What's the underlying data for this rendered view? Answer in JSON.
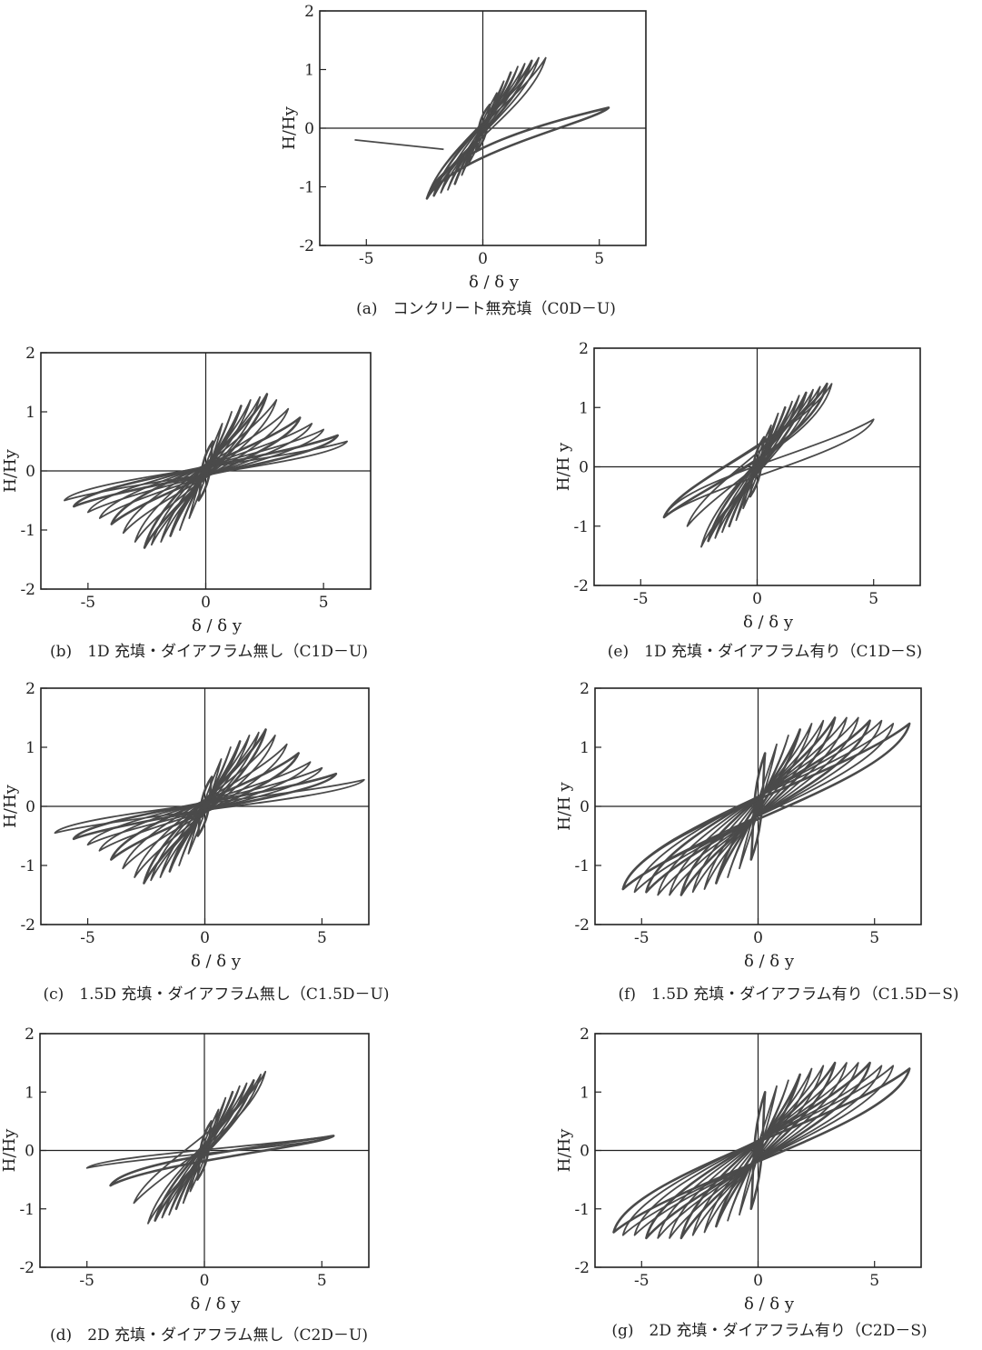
{
  "chart_data": [
    {
      "id": "a",
      "type": "line",
      "title": "",
      "caption": "(a)　コンクリート無充填（C0D－U)",
      "xlabel": "δ / δ y",
      "ylabel": "H/Hy",
      "xlim": [
        -7,
        7
      ],
      "ylim": [
        -2,
        2
      ],
      "xticks": [
        "-5",
        "0",
        "5"
      ],
      "yticks": [
        "-2",
        "-1",
        "0",
        "1",
        "2"
      ],
      "grid": false,
      "hysteresis": {
        "x": [
          -0.3,
          -0.6,
          -0.9,
          -1.2,
          -1.5,
          -1.8,
          -2.1,
          -2.4,
          0.3,
          0.6,
          0.9,
          1.2,
          1.5,
          1.8,
          2.1,
          2.4,
          2.7,
          5.4
        ],
        "y": [
          -0.4,
          -0.6,
          -0.8,
          -0.95,
          -1.05,
          -1.1,
          -1.15,
          -1.2,
          0.4,
          0.6,
          0.8,
          0.95,
          1.05,
          1.1,
          1.15,
          1.2,
          1.2,
          0.35
        ],
        "x_min": -5.5,
        "y_at_x_min": -0.2
      }
    },
    {
      "id": "b",
      "type": "line",
      "title": "",
      "caption": "(b)　1D 充填・ダイアフラム無し（C1D－U)",
      "xlabel": "δ / δ y",
      "ylabel": "H/Hy",
      "xlim": [
        -7,
        7
      ],
      "ylim": [
        -2,
        2
      ],
      "xticks": [
        "-5",
        "0",
        "5"
      ],
      "yticks": [
        "-2",
        "-1",
        "0",
        "1",
        "2"
      ],
      "grid": false,
      "hysteresis": {
        "x": [
          -0.3,
          -0.7,
          -1.1,
          -1.5,
          -1.9,
          -2.3,
          -2.6,
          -3.0,
          -3.5,
          -4.0,
          -4.5,
          -5.0,
          -5.6,
          -6.0,
          0.3,
          0.7,
          1.1,
          1.5,
          1.9,
          2.3,
          2.6,
          3.0,
          3.5,
          4.0,
          4.5,
          5.0,
          5.6,
          6.0
        ],
        "y": [
          -0.5,
          -0.8,
          -1.0,
          -1.1,
          -1.2,
          -1.25,
          -1.3,
          -1.2,
          -1.05,
          -0.9,
          -0.8,
          -0.7,
          -0.6,
          -0.5,
          0.5,
          0.8,
          1.0,
          1.1,
          1.2,
          1.25,
          1.3,
          1.2,
          1.05,
          0.9,
          0.8,
          0.7,
          0.6,
          0.5
        ]
      }
    },
    {
      "id": "e",
      "type": "line",
      "title": "",
      "caption": "(e)　1D 充填・ダイアフラム有り（C1D－S)",
      "xlabel": "δ / δ y",
      "ylabel": "H/H y",
      "xlim": [
        -7,
        7
      ],
      "ylim": [
        -2,
        2
      ],
      "xticks": [
        "-5",
        "0",
        "5"
      ],
      "yticks": [
        "-2",
        "-1",
        "0",
        "1",
        "2"
      ],
      "grid": false,
      "hysteresis": {
        "x": [
          -0.3,
          -0.6,
          -0.9,
          -1.2,
          -1.5,
          -1.8,
          -2.1,
          -2.4,
          -3.0,
          -4.0,
          0.3,
          0.6,
          0.9,
          1.2,
          1.5,
          1.8,
          2.1,
          2.4,
          2.7,
          3.0,
          3.2,
          5.0
        ],
        "y": [
          -0.5,
          -0.7,
          -0.9,
          -1.0,
          -1.1,
          -1.2,
          -1.25,
          -1.35,
          -1.0,
          -0.85,
          0.5,
          0.7,
          0.9,
          1.0,
          1.1,
          1.2,
          1.25,
          1.3,
          1.35,
          1.4,
          1.4,
          0.8
        ]
      }
    },
    {
      "id": "c",
      "type": "line",
      "title": "",
      "caption": "(c)　1.5D 充填・ダイアフラム無し（C1.5D－U)",
      "xlabel": "δ / δ y",
      "ylabel": "H/Hy",
      "xlim": [
        -7,
        7
      ],
      "ylim": [
        -2,
        2
      ],
      "xticks": [
        "-5",
        "0",
        "5"
      ],
      "yticks": [
        "-2",
        "-1",
        "0",
        "1",
        "2"
      ],
      "grid": false,
      "hysteresis": {
        "x": [
          -0.3,
          -0.7,
          -1.1,
          -1.5,
          -1.9,
          -2.3,
          -2.6,
          -3.0,
          -3.5,
          -4.0,
          -4.5,
          -5.0,
          -5.6,
          -6.4,
          0.3,
          0.7,
          1.1,
          1.5,
          1.9,
          2.3,
          2.6,
          3.0,
          3.5,
          4.0,
          4.5,
          5.0,
          5.6,
          6.8
        ],
        "y": [
          -0.5,
          -0.8,
          -1.0,
          -1.1,
          -1.2,
          -1.25,
          -1.3,
          -1.2,
          -1.05,
          -0.9,
          -0.75,
          -0.65,
          -0.55,
          -0.45,
          0.5,
          0.8,
          1.0,
          1.1,
          1.2,
          1.25,
          1.3,
          1.2,
          1.05,
          0.9,
          0.75,
          0.65,
          0.55,
          0.45
        ]
      }
    },
    {
      "id": "f",
      "type": "line",
      "title": "",
      "caption": "(f)　1.5D 充填・ダイアフラム有り（C1.5D－S)",
      "xlabel": "δ / δ y",
      "ylabel": "H/H y",
      "xlim": [
        -7,
        7
      ],
      "ylim": [
        -2,
        2
      ],
      "xticks": [
        "-5",
        "0",
        "5"
      ],
      "yticks": [
        "-2",
        "-1",
        "0",
        "1",
        "2"
      ],
      "grid": false,
      "hysteresis": {
        "x": [
          -0.3,
          -0.8,
          -1.3,
          -1.8,
          -2.3,
          -2.8,
          -3.3,
          -3.8,
          -4.3,
          -4.8,
          -5.3,
          -5.8,
          0.3,
          0.8,
          1.3,
          1.8,
          2.3,
          2.8,
          3.3,
          3.8,
          4.3,
          4.8,
          5.3,
          5.8,
          6.5
        ],
        "y": [
          -0.9,
          -1.05,
          -1.2,
          -1.3,
          -1.4,
          -1.45,
          -1.5,
          -1.5,
          -1.5,
          -1.45,
          -1.45,
          -1.4,
          0.9,
          1.05,
          1.2,
          1.3,
          1.4,
          1.45,
          1.5,
          1.5,
          1.5,
          1.45,
          1.45,
          1.4,
          1.4
        ]
      }
    },
    {
      "id": "d",
      "type": "line",
      "title": "",
      "caption": "(d)　2D 充填・ダイアフラム無し（C2D－U)",
      "xlabel": "δ / δ y",
      "ylabel": "H/Hy",
      "xlim": [
        -7,
        7
      ],
      "ylim": [
        -2,
        2
      ],
      "xticks": [
        "-5",
        "0",
        "5"
      ],
      "yticks": [
        "-2",
        "-1",
        "0",
        "1",
        "2"
      ],
      "grid": false,
      "hysteresis": {
        "x": [
          -0.3,
          -0.6,
          -0.9,
          -1.2,
          -1.5,
          -1.8,
          -2.1,
          -2.4,
          -3.0,
          -4.0,
          -5.0,
          0.3,
          0.6,
          0.9,
          1.2,
          1.5,
          1.8,
          2.1,
          2.4,
          2.6,
          5.5
        ],
        "y": [
          -0.5,
          -0.7,
          -0.9,
          -1.0,
          -1.1,
          -1.15,
          -1.2,
          -1.25,
          -0.9,
          -0.6,
          -0.3,
          0.5,
          0.7,
          0.9,
          1.0,
          1.1,
          1.15,
          1.2,
          1.3,
          1.35,
          0.25
        ]
      }
    },
    {
      "id": "g",
      "type": "line",
      "title": "",
      "caption": "(g)　2D 充填・ダイアフラム有り（C2D－S)",
      "xlabel": "δ / δ y",
      "ylabel": "H/Hy",
      "xlim": [
        -7,
        7
      ],
      "ylim": [
        -2,
        2
      ],
      "xticks": [
        "-5",
        "0",
        "5"
      ],
      "yticks": [
        "-2",
        "-1",
        "0",
        "1",
        "2"
      ],
      "grid": false,
      "hysteresis": {
        "x": [
          -0.3,
          -0.8,
          -1.3,
          -1.8,
          -2.3,
          -2.8,
          -3.3,
          -3.8,
          -4.3,
          -4.8,
          -5.3,
          -5.8,
          -6.2,
          0.3,
          0.8,
          1.3,
          1.8,
          2.3,
          2.8,
          3.3,
          3.8,
          4.3,
          4.8,
          5.3,
          5.8,
          6.5
        ],
        "y": [
          -1.0,
          -1.1,
          -1.2,
          -1.3,
          -1.4,
          -1.45,
          -1.5,
          -1.5,
          -1.5,
          -1.5,
          -1.45,
          -1.45,
          -1.4,
          1.0,
          1.1,
          1.2,
          1.3,
          1.4,
          1.45,
          1.5,
          1.5,
          1.5,
          1.5,
          1.45,
          1.45,
          1.4
        ]
      }
    }
  ]
}
